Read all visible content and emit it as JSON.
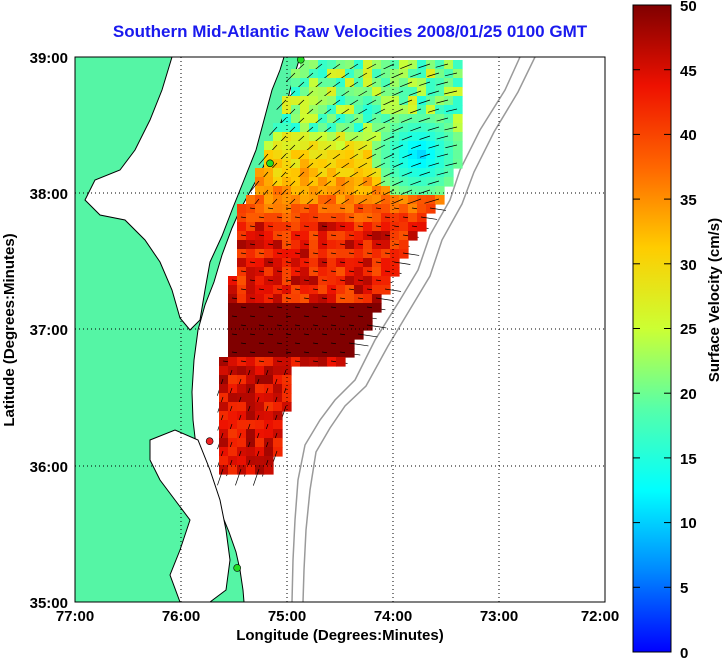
{
  "title": "Southern Mid-Atlantic Raw Velocities 2008/01/25 0100 GMT",
  "x_axis": {
    "label": "Longitude (Degrees:Minutes)",
    "ticks": [
      "77:00",
      "76:00",
      "75:00",
      "74:00",
      "73:00",
      "72:00"
    ],
    "range": [
      -77,
      -72
    ]
  },
  "y_axis": {
    "label": "Latitude (Degrees:Minutes)",
    "ticks": [
      "39:00",
      "38:00",
      "37:00",
      "36:00",
      "35:00"
    ],
    "range": [
      35,
      39
    ]
  },
  "colorbar": {
    "label": "Surface Velocity (cm/s)",
    "ticks": [
      "50",
      "45",
      "40",
      "35",
      "30",
      "25",
      "20",
      "15",
      "10",
      "5",
      "0"
    ],
    "range": [
      0,
      50
    ]
  },
  "colors": {
    "land": "#55f5a5",
    "water": "#ffffff",
    "coastline": "#000000",
    "bathymetry": "#9a9a9a",
    "title": "#1a1aee",
    "site_marker_ok": "#22dd22",
    "site_marker_alert": "#ee2222"
  },
  "sites": [
    {
      "lon": -74.87,
      "lat": 38.98,
      "status": "ok"
    },
    {
      "lon": -75.16,
      "lat": 38.22,
      "status": "ok"
    },
    {
      "lon": -75.73,
      "lat": 36.18,
      "status": "alert"
    },
    {
      "lon": -75.47,
      "lat": 35.25,
      "status": "ok"
    }
  ]
}
